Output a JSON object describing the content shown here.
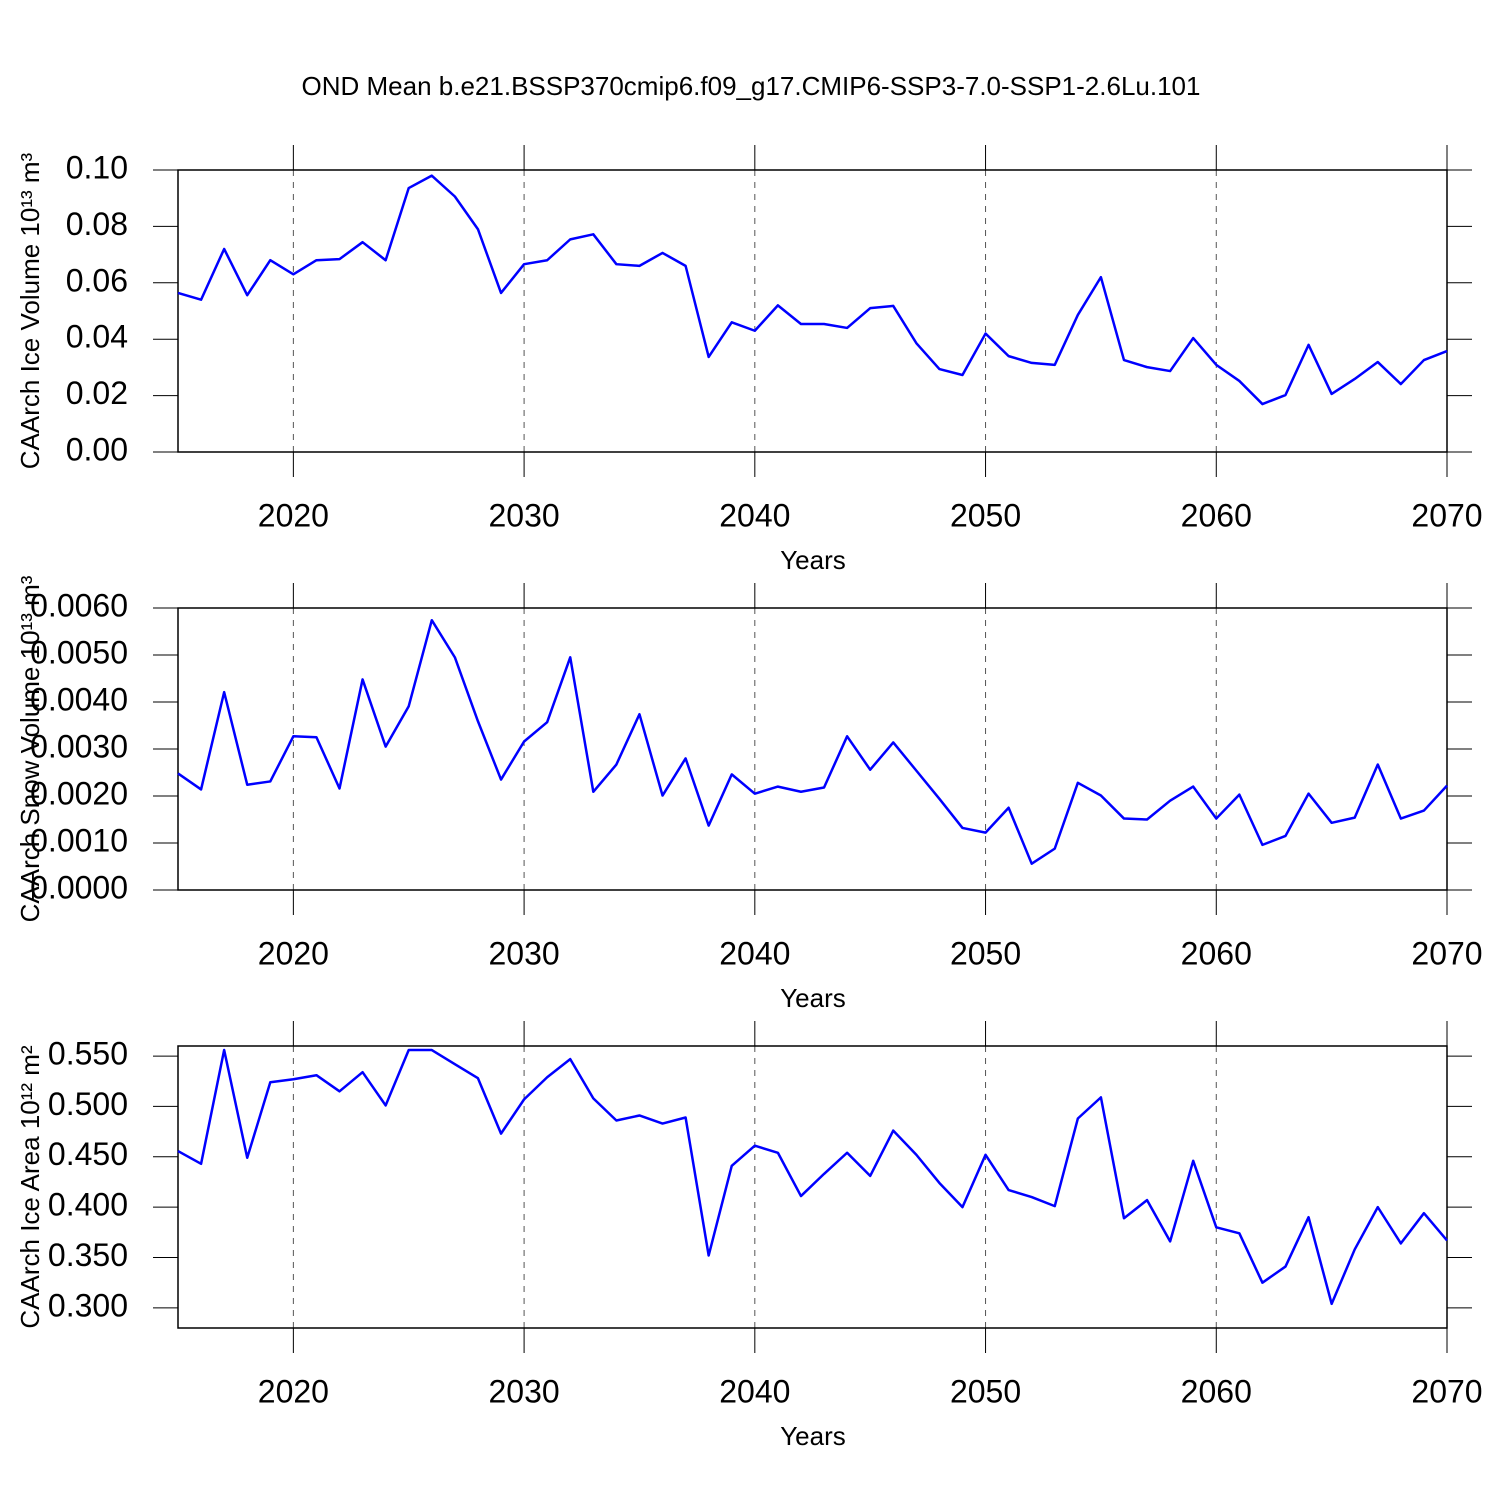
{
  "chart_data": [
    {
      "type": "line",
      "title": "OND Mean b.e21.BSSP370cmip6.f09_g17.CMIP6-SSP3-7.0-SSP1-2.6Lu.101",
      "ylabel": "CAArch Ice Volume 10¹³ m³",
      "xlabel": "Years",
      "color": "#0000ff",
      "xgrid": true,
      "xlim": [
        2015,
        2070
      ],
      "xticks": [
        2020,
        2030,
        2040,
        2050,
        2060,
        2070
      ],
      "ylim": [
        0,
        0.1
      ],
      "yticks": [
        {
          "value": 0,
          "label": "0.00"
        },
        0.02,
        0.04,
        0.06,
        0.08,
        {
          "value": 0.1,
          "label": "0.10"
        }
      ],
      "x": [
        2015,
        2016,
        2017,
        2018,
        2019,
        2020,
        2021,
        2022,
        2023,
        2024,
        2025,
        2026,
        2027,
        2028,
        2029,
        2030,
        2031,
        2032,
        2033,
        2034,
        2035,
        2036,
        2037,
        2038,
        2039,
        2040,
        2041,
        2042,
        2043,
        2044,
        2045,
        2046,
        2047,
        2048,
        2049,
        2050,
        2051,
        2052,
        2053,
        2054,
        2055,
        2056,
        2057,
        2058,
        2059,
        2060,
        2061,
        2062,
        2063,
        2064,
        2065,
        2066,
        2067,
        2068,
        2069,
        2070
      ],
      "values": [
        0.0564,
        0.054,
        0.072,
        0.0556,
        0.068,
        0.063,
        0.068,
        0.0684,
        0.0744,
        0.068,
        0.0936,
        0.098,
        0.0906,
        0.079,
        0.0564,
        0.0666,
        0.068,
        0.0754,
        0.0772,
        0.0666,
        0.066,
        0.0706,
        0.066,
        0.0337,
        0.046,
        0.043,
        0.052,
        0.0454,
        0.0454,
        0.044,
        0.051,
        0.0518,
        0.0386,
        0.0294,
        0.0273,
        0.042,
        0.034,
        0.0316,
        0.0309,
        0.0486,
        0.062,
        0.0326,
        0.0301,
        0.0287,
        0.0404,
        0.0309,
        0.0252,
        0.017,
        0.0202,
        0.038,
        0.0206,
        0.0259,
        0.0319,
        0.0241,
        0.0326,
        0.0358
      ]
    },
    {
      "type": "line",
      "ylabel": "CAArch Snow Volume 10¹³ m³",
      "xlabel": "Years",
      "color": "#0000ff",
      "xgrid": true,
      "xlim": [
        2015,
        2070
      ],
      "xticks": [
        2020,
        2030,
        2040,
        2050,
        2060,
        2070
      ],
      "ylim": [
        0,
        0.006
      ],
      "yticks": [
        {
          "value": 0,
          "label": "0.0000"
        },
        {
          "value": 0.001,
          "label": "0.0010"
        },
        {
          "value": 0.002,
          "label": "0.0020"
        },
        {
          "value": 0.003,
          "label": "0.0030"
        },
        {
          "value": 0.004,
          "label": "0.0040"
        },
        {
          "value": 0.005,
          "label": "0.0050"
        },
        {
          "value": 0.006,
          "label": "0.0060"
        }
      ],
      "x": [
        2015,
        2016,
        2017,
        2018,
        2019,
        2020,
        2021,
        2022,
        2023,
        2024,
        2025,
        2026,
        2027,
        2028,
        2029,
        2030,
        2031,
        2032,
        2033,
        2034,
        2035,
        2036,
        2037,
        2038,
        2039,
        2040,
        2041,
        2042,
        2043,
        2044,
        2045,
        2046,
        2047,
        2048,
        2049,
        2050,
        2051,
        2052,
        2053,
        2054,
        2055,
        2056,
        2057,
        2058,
        2059,
        2060,
        2061,
        2062,
        2063,
        2064,
        2065,
        2066,
        2067,
        2068,
        2069,
        2070
      ],
      "values": [
        0.00248,
        0.00214,
        0.00421,
        0.00224,
        0.00231,
        0.00327,
        0.00325,
        0.00216,
        0.00448,
        0.00305,
        0.00391,
        0.00574,
        0.00495,
        0.00359,
        0.00235,
        0.00316,
        0.00357,
        0.00495,
        0.00209,
        0.00267,
        0.00374,
        0.00201,
        0.0028,
        0.00137,
        0.00246,
        0.00205,
        0.0022,
        0.00209,
        0.00218,
        0.00327,
        0.00256,
        0.00314,
        0.00254,
        0.00194,
        0.00132,
        0.00122,
        0.00175,
        0.00056,
        0.00088,
        0.00228,
        0.00201,
        0.00152,
        0.0015,
        0.0019,
        0.0022,
        0.00152,
        0.00203,
        0.00096,
        0.00115,
        0.00205,
        0.00143,
        0.00154,
        0.00267,
        0.00152,
        0.00169,
        0.00222
      ]
    },
    {
      "type": "line",
      "ylabel": "CAArch Ice Area 10¹² m²",
      "xlabel": "Years",
      "color": "#0000ff",
      "xgrid": true,
      "xlim": [
        2015,
        2070
      ],
      "xticks": [
        2020,
        2030,
        2040,
        2050,
        2060,
        2070
      ],
      "ylim": [
        0.28,
        0.56
      ],
      "yticks": [
        {
          "value": 0.3,
          "label": "0.300"
        },
        {
          "value": 0.35,
          "label": "0.350"
        },
        {
          "value": 0.4,
          "label": "0.400"
        },
        {
          "value": 0.45,
          "label": "0.450"
        },
        {
          "value": 0.5,
          "label": "0.500"
        },
        {
          "value": 0.55,
          "label": "0.550"
        }
      ],
      "x": [
        2015,
        2016,
        2017,
        2018,
        2019,
        2020,
        2021,
        2022,
        2023,
        2024,
        2025,
        2026,
        2027,
        2028,
        2029,
        2030,
        2031,
        2032,
        2033,
        2034,
        2035,
        2036,
        2037,
        2038,
        2039,
        2040,
        2041,
        2042,
        2043,
        2044,
        2045,
        2046,
        2047,
        2048,
        2049,
        2050,
        2051,
        2052,
        2053,
        2054,
        2055,
        2056,
        2057,
        2058,
        2059,
        2060,
        2061,
        2062,
        2063,
        2064,
        2065,
        2066,
        2067,
        2068,
        2069,
        2070
      ],
      "values": [
        0.4557,
        0.443,
        0.556,
        0.449,
        0.524,
        0.527,
        0.531,
        0.515,
        0.534,
        0.501,
        0.556,
        0.556,
        0.542,
        0.528,
        0.473,
        0.507,
        0.529,
        0.547,
        0.508,
        0.486,
        0.491,
        0.483,
        0.489,
        0.352,
        0.441,
        0.461,
        0.454,
        0.411,
        0.433,
        0.454,
        0.431,
        0.476,
        0.452,
        0.424,
        0.4,
        0.452,
        0.417,
        0.41,
        0.401,
        0.488,
        0.509,
        0.389,
        0.407,
        0.366,
        0.446,
        0.38,
        0.374,
        0.325,
        0.341,
        0.39,
        0.304,
        0.358,
        0.4,
        0.364,
        0.394,
        0.367
      ]
    }
  ]
}
